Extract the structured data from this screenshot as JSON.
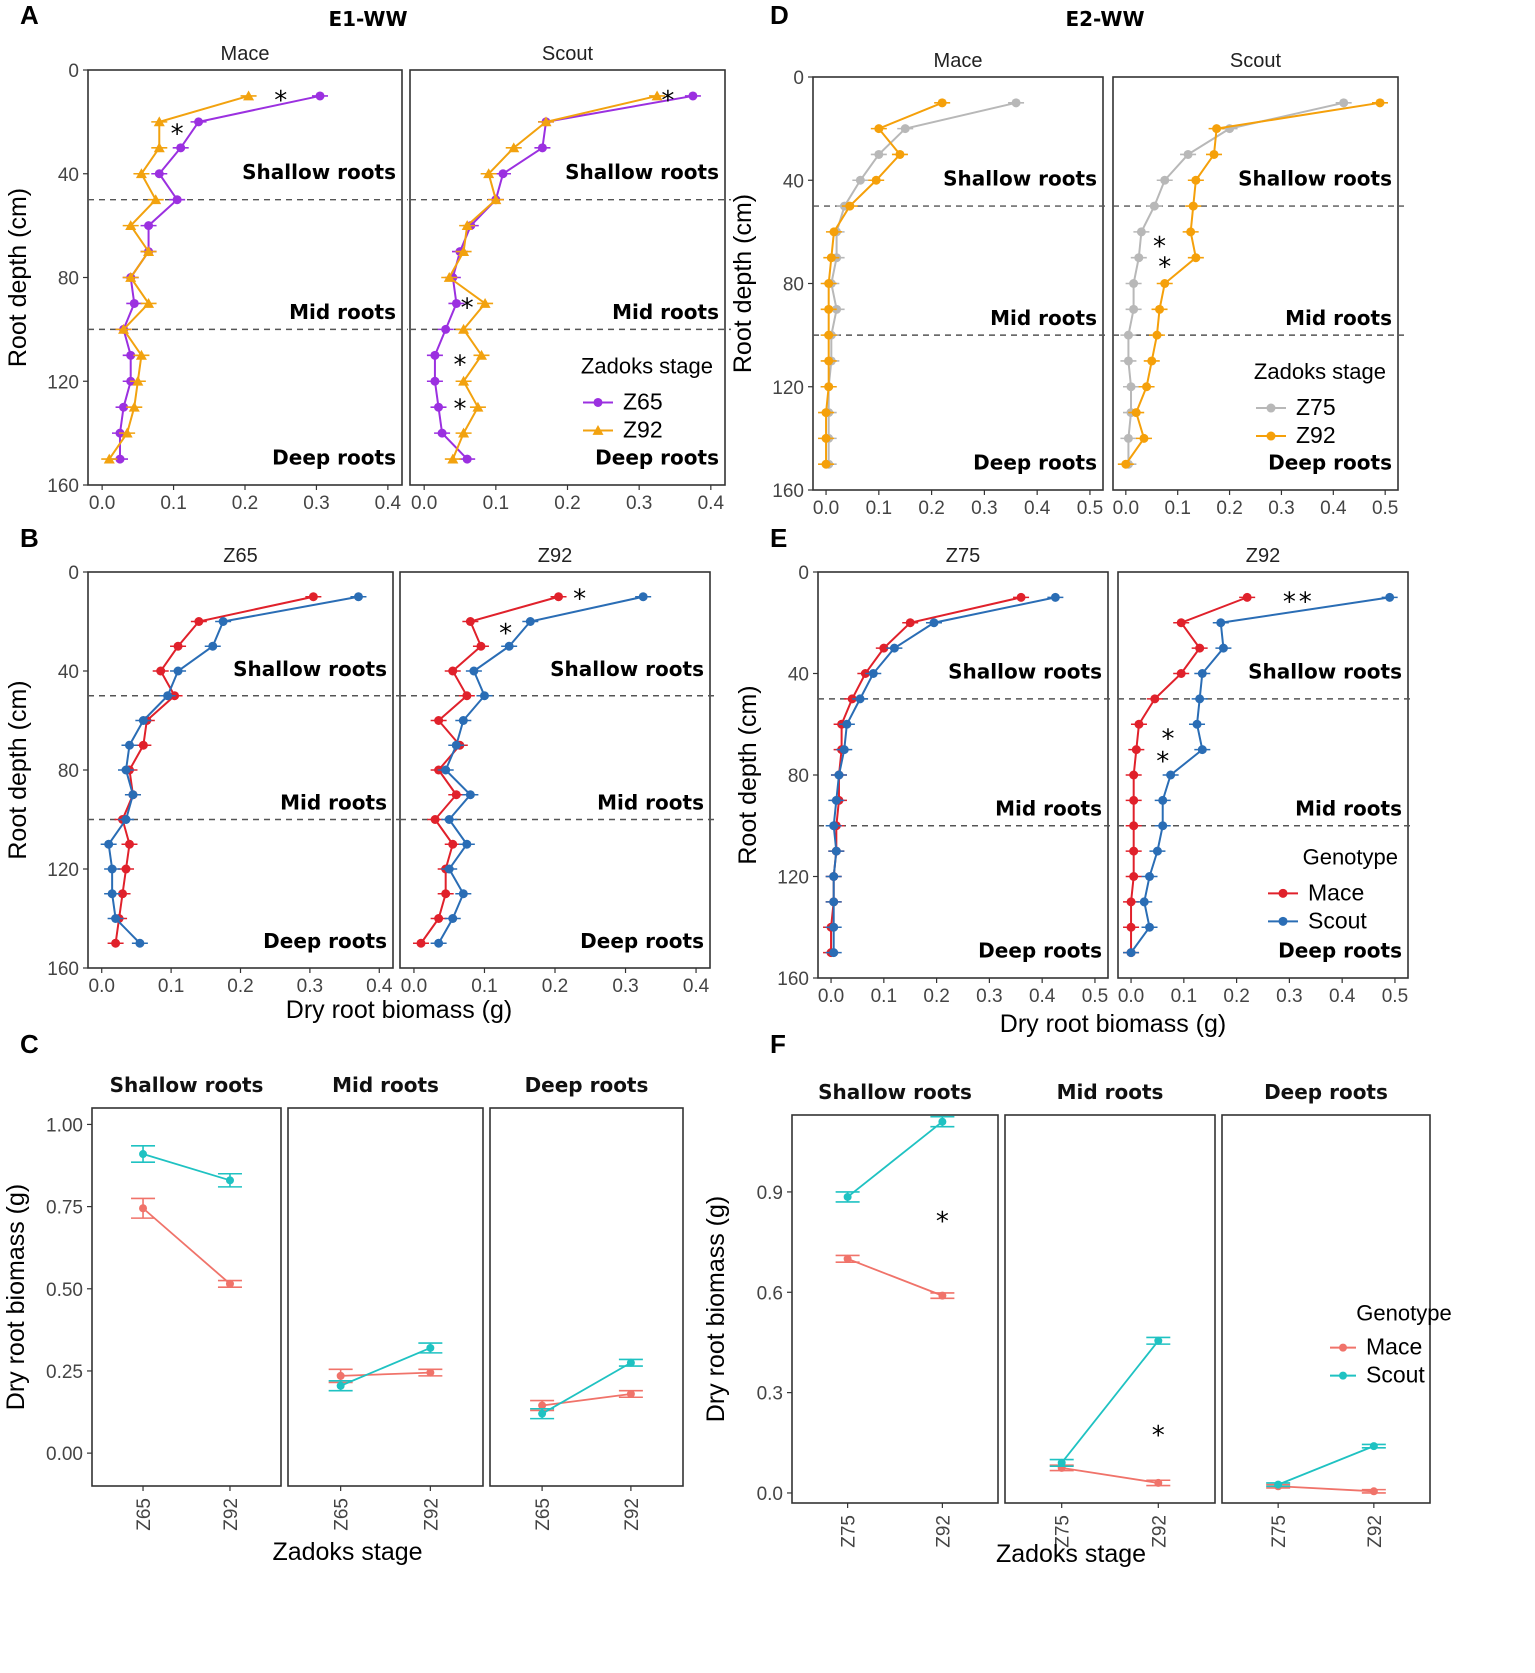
{
  "figure": {
    "colors": {
      "Z65": "#9b30e0",
      "Z92_E1": "#f2a20f",
      "Z75": "#b8b8b8",
      "Z92_E2": "#f5a00a",
      "Mace": "#e0212b",
      "Scout": "#2a6db5",
      "MaceC": "#f0736a",
      "ScoutC": "#1fc2c2"
    }
  },
  "chart_data": [
    {
      "id": "A",
      "type": "line",
      "letter": "A",
      "title": "E1-WW",
      "facets": [
        "Mace",
        "Scout"
      ],
      "xlim": [
        0,
        0.4
      ],
      "xticks": [
        "0.0",
        "0.1",
        "0.2",
        "0.3",
        "0.4"
      ],
      "ylim": [
        0,
        160
      ],
      "yticks": [
        "0",
        "40",
        "80",
        "120",
        "160"
      ],
      "ylabel": "Root depth (cm)",
      "xlabel": "",
      "depths": [
        10,
        20,
        30,
        40,
        50,
        60,
        70,
        80,
        90,
        100,
        110,
        120,
        130,
        140,
        150
      ],
      "legend": {
        "title": "Zadoks stage",
        "facet": 1
      },
      "regions": [
        "Shallow roots",
        "Mid roots",
        "Deep roots"
      ],
      "series": [
        {
          "name": "Z65",
          "color": "Z65",
          "marker": "circle",
          "values": [
            [
              0.305,
              0.135,
              0.11,
              0.08,
              0.105,
              0.065,
              0.065,
              0.04,
              0.045,
              0.03,
              0.04,
              0.04,
              0.03,
              0.025,
              0.025
            ],
            [
              0.375,
              0.17,
              0.165,
              0.11,
              0.1,
              0.065,
              0.05,
              0.04,
              0.045,
              0.03,
              0.015,
              0.015,
              0.02,
              0.025,
              0.06
            ]
          ]
        },
        {
          "name": "Z92",
          "color": "Z92_E1",
          "marker": "triangle",
          "values": [
            [
              0.205,
              0.08,
              0.08,
              0.055,
              0.075,
              0.04,
              0.065,
              0.04,
              0.065,
              0.03,
              0.055,
              0.05,
              0.045,
              0.035,
              0.01
            ],
            [
              0.325,
              0.17,
              0.125,
              0.09,
              0.1,
              0.06,
              0.055,
              0.035,
              0.085,
              0.055,
              0.08,
              0.055,
              0.075,
              0.055,
              0.04
            ]
          ]
        }
      ],
      "stars": [
        {
          "facet": 0,
          "x": 0.25,
          "y": 8
        },
        {
          "facet": 0,
          "x": 0.105,
          "y": 21
        },
        {
          "facet": 1,
          "x": 0.34,
          "y": 8
        },
        {
          "facet": 1,
          "x": 0.06,
          "y": 88
        },
        {
          "facet": 1,
          "x": 0.05,
          "y": 110
        },
        {
          "facet": 1,
          "x": 0.05,
          "y": 127
        }
      ]
    },
    {
      "id": "B",
      "type": "line",
      "letter": "B",
      "title": "",
      "facets": [
        "Z65",
        "Z92"
      ],
      "xlim": [
        0,
        0.4
      ],
      "xticks": [
        "0.0",
        "0.1",
        "0.2",
        "0.3",
        "0.4"
      ],
      "ylim": [
        0,
        160
      ],
      "yticks": [
        "0",
        "40",
        "80",
        "120",
        "160"
      ],
      "ylabel": "Root depth (cm)",
      "xlabel": "Dry root biomass (g)",
      "depths": [
        10,
        20,
        30,
        40,
        50,
        60,
        70,
        80,
        90,
        100,
        110,
        120,
        130,
        140,
        150
      ],
      "legend": null,
      "regions": [
        "Shallow roots",
        "Mid roots",
        "Deep roots"
      ],
      "series": [
        {
          "name": "Mace",
          "color": "Mace",
          "marker": "circle",
          "values": [
            [
              0.305,
              0.14,
              0.11,
              0.085,
              0.105,
              0.065,
              0.06,
              0.04,
              0.045,
              0.03,
              0.04,
              0.035,
              0.03,
              0.025,
              0.02
            ],
            [
              0.205,
              0.08,
              0.095,
              0.055,
              0.075,
              0.035,
              0.065,
              0.035,
              0.06,
              0.03,
              0.055,
              0.045,
              0.045,
              0.035,
              0.01
            ]
          ]
        },
        {
          "name": "Scout",
          "color": "Scout",
          "marker": "circle",
          "values": [
            [
              0.37,
              0.175,
              0.16,
              0.11,
              0.095,
              0.06,
              0.04,
              0.035,
              0.045,
              0.035,
              0.01,
              0.015,
              0.015,
              0.02,
              0.055
            ],
            [
              0.325,
              0.165,
              0.135,
              0.085,
              0.1,
              0.07,
              0.06,
              0.045,
              0.08,
              0.05,
              0.075,
              0.05,
              0.07,
              0.055,
              0.035
            ]
          ]
        }
      ],
      "stars": [
        {
          "facet": 1,
          "x": 0.235,
          "y": 7
        },
        {
          "facet": 1,
          "x": 0.13,
          "y": 21
        }
      ]
    },
    {
      "id": "D",
      "type": "line",
      "letter": "D",
      "title": "E2-WW",
      "facets": [
        "Mace",
        "Scout"
      ],
      "xlim": [
        0,
        0.5
      ],
      "xticks": [
        "0.0",
        "0.1",
        "0.2",
        "0.3",
        "0.4",
        "0.5"
      ],
      "ylim": [
        0,
        160
      ],
      "yticks": [
        "0",
        "40",
        "80",
        "120",
        "160"
      ],
      "ylabel": "Root depth (cm)",
      "xlabel": "",
      "depths": [
        10,
        20,
        30,
        40,
        50,
        60,
        70,
        80,
        90,
        100,
        110,
        120,
        130,
        140,
        150
      ],
      "legend": {
        "title": "Zadoks stage",
        "facet": 1
      },
      "regions": [
        "Shallow roots",
        "Mid roots",
        "Deep roots"
      ],
      "series": [
        {
          "name": "Z75",
          "color": "Z75",
          "marker": "circle",
          "values": [
            [
              0.36,
              0.15,
              0.1,
              0.065,
              0.035,
              0.02,
              0.02,
              0.01,
              0.02,
              0.01,
              0.01,
              0.005,
              0.005,
              0.005,
              0.005
            ],
            [
              0.42,
              0.2,
              0.12,
              0.075,
              0.055,
              0.03,
              0.025,
              0.015,
              0.015,
              0.005,
              0.005,
              0.01,
              0.01,
              0.005,
              0.005
            ]
          ]
        },
        {
          "name": "Z92",
          "color": "Z92_E2",
          "marker": "circle",
          "values": [
            [
              0.22,
              0.1,
              0.14,
              0.095,
              0.045,
              0.015,
              0.01,
              0.005,
              0.005,
              0.005,
              0.005,
              0.005,
              0.0,
              0.0,
              0.0
            ],
            [
              0.49,
              0.175,
              0.17,
              0.135,
              0.13,
              0.125,
              0.135,
              0.075,
              0.065,
              0.06,
              0.05,
              0.04,
              0.02,
              0.035,
              0.0
            ]
          ]
        }
      ],
      "stars": [
        {
          "facet": 1,
          "x": 0.065,
          "y": 62
        },
        {
          "facet": 1,
          "x": 0.075,
          "y": 70
        }
      ]
    },
    {
      "id": "E",
      "type": "line",
      "letter": "E",
      "title": "",
      "facets": [
        "Z75",
        "Z92"
      ],
      "xlim": [
        0,
        0.5
      ],
      "xticks": [
        "0.0",
        "0.1",
        "0.2",
        "0.3",
        "0.4",
        "0.5"
      ],
      "ylim": [
        0,
        160
      ],
      "yticks": [
        "0",
        "40",
        "80",
        "120",
        "160"
      ],
      "ylabel": "Root depth (cm)",
      "xlabel": "Dry root biomass (g)",
      "depths": [
        10,
        20,
        30,
        40,
        50,
        60,
        70,
        80,
        90,
        100,
        110,
        120,
        130,
        140,
        150
      ],
      "legend": {
        "title": "Genotype",
        "facet": 1
      },
      "regions": [
        "Shallow roots",
        "Mid roots",
        "Deep roots"
      ],
      "series": [
        {
          "name": "Mace",
          "color": "Mace",
          "marker": "circle",
          "values": [
            [
              0.36,
              0.15,
              0.1,
              0.065,
              0.04,
              0.02,
              0.02,
              0.015,
              0.015,
              0.01,
              0.01,
              0.005,
              0.005,
              0.0,
              0.0
            ],
            [
              0.22,
              0.095,
              0.13,
              0.095,
              0.045,
              0.015,
              0.01,
              0.005,
              0.005,
              0.005,
              0.005,
              0.005,
              0.0,
              0.0,
              0.0
            ]
          ]
        },
        {
          "name": "Scout",
          "color": "Scout",
          "marker": "circle",
          "values": [
            [
              0.425,
              0.195,
              0.12,
              0.08,
              0.055,
              0.03,
              0.025,
              0.015,
              0.01,
              0.005,
              0.01,
              0.005,
              0.005,
              0.005,
              0.005
            ],
            [
              0.49,
              0.17,
              0.175,
              0.135,
              0.13,
              0.125,
              0.135,
              0.075,
              0.06,
              0.06,
              0.05,
              0.035,
              0.025,
              0.035,
              0.0
            ]
          ]
        }
      ],
      "stars": [
        {
          "facet": 1,
          "x": 0.3,
          "y": 8
        },
        {
          "facet": 1,
          "x": 0.33,
          "y": 8
        },
        {
          "facet": 1,
          "x": 0.07,
          "y": 62
        },
        {
          "facet": 1,
          "x": 0.06,
          "y": 71
        }
      ]
    },
    {
      "id": "C",
      "type": "line",
      "letter": "C",
      "title": "",
      "facets": [
        "Shallow roots",
        "Mid roots",
        "Deep roots"
      ],
      "categories": [
        "Z65",
        "Z92"
      ],
      "ylim": [
        -0.1,
        1.05
      ],
      "yticks": [
        0.0,
        0.25,
        0.5,
        0.75,
        1.0
      ],
      "ytick_labels": [
        "0.00",
        "0.25",
        "0.50",
        "0.75",
        "1.00"
      ],
      "ylabel": "Dry root biomass (g)",
      "xlabel": "Zadoks stage",
      "legend": null,
      "series": [
        {
          "name": "Mace",
          "color": "MaceC",
          "values": [
            [
              0.745,
              0.515
            ],
            [
              0.235,
              0.245
            ],
            [
              0.145,
              0.18
            ]
          ],
          "errors": [
            [
              0.03,
              0.01
            ],
            [
              0.02,
              0.01
            ],
            [
              0.015,
              0.01
            ]
          ]
        },
        {
          "name": "Scout",
          "color": "ScoutC",
          "values": [
            [
              0.91,
              0.83
            ],
            [
              0.205,
              0.32
            ],
            [
              0.12,
              0.275
            ]
          ],
          "errors": [
            [
              0.025,
              0.02
            ],
            [
              0.015,
              0.015
            ],
            [
              0.015,
              0.01
            ]
          ]
        }
      ],
      "stars": []
    },
    {
      "id": "F",
      "type": "line",
      "letter": "F",
      "title": "",
      "facets": [
        "Shallow roots",
        "Mid roots",
        "Deep roots"
      ],
      "categories": [
        "Z75",
        "Z92"
      ],
      "ylim": [
        -0.03,
        1.13
      ],
      "yticks": [
        0.0,
        0.3,
        0.6,
        0.9
      ],
      "ytick_labels": [
        "0.0",
        "0.3",
        "0.6",
        "0.9"
      ],
      "ylabel": "Dry root biomass (g)",
      "xlabel": "Zadoks stage",
      "legend": {
        "title": "Genotype",
        "facet": 2
      },
      "series": [
        {
          "name": "Mace",
          "color": "MaceC",
          "values": [
            [
              0.7,
              0.59
            ],
            [
              0.075,
              0.03
            ],
            [
              0.02,
              0.005
            ]
          ],
          "errors": [
            [
              0.01,
              0.008
            ],
            [
              0.008,
              0.008
            ],
            [
              0.005,
              0.005
            ]
          ]
        },
        {
          "name": "Scout",
          "color": "ScoutC",
          "values": [
            [
              0.885,
              1.11
            ],
            [
              0.09,
              0.455
            ],
            [
              0.025,
              0.14
            ]
          ],
          "errors": [
            [
              0.015,
              0.015
            ],
            [
              0.01,
              0.01
            ],
            [
              0.005,
              0.005
            ]
          ]
        }
      ],
      "stars": [
        {
          "facet": 0,
          "x": 1.0,
          "y": 0.84
        },
        {
          "facet": 1,
          "x": 1.0,
          "y": 0.2
        }
      ]
    }
  ]
}
